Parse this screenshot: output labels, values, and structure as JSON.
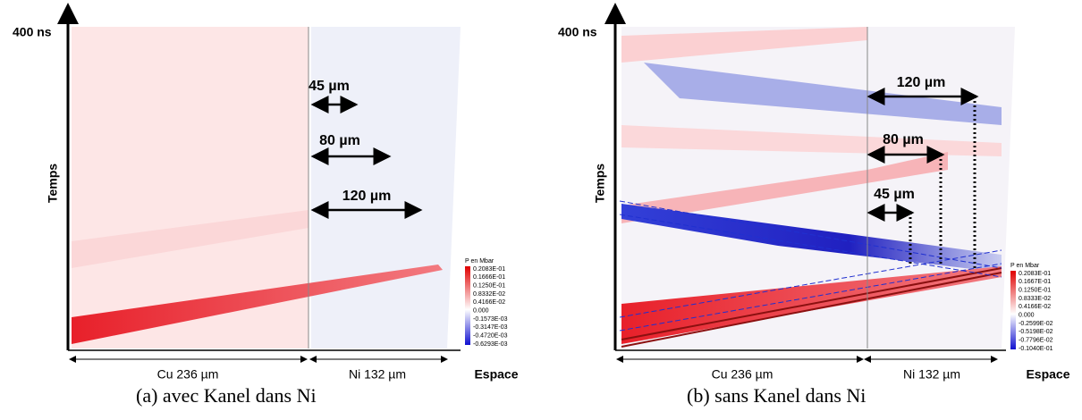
{
  "panels": [
    {
      "time_label": "400 ns",
      "y_label": "Temps",
      "x_label": "Espace",
      "cu_label": "Cu 236 µm",
      "ni_label": "Ni 132 µm",
      "annotations": [
        "45 µm",
        "80 µm",
        "120 µm"
      ],
      "colorbar": {
        "title": "P en Mbar",
        "labels": [
          "0.2083E-01",
          "0.1666E-01",
          "0.1250E-01",
          "0.8332E-02",
          "0.4166E-02",
          "0.000",
          "-0.1573E-03",
          "-0.3147E-03",
          "-0.4720E-03",
          "-0.6293E-03"
        ]
      },
      "caption": "(a) avec Kanel dans Ni"
    },
    {
      "time_label": "400 ns",
      "y_label": "Temps",
      "x_label": "Espace",
      "cu_label": "Cu 236 µm",
      "ni_label": "Ni 132 µm",
      "annotations": [
        "45 µm",
        "80 µm",
        "120 µm"
      ],
      "colorbar": {
        "title": "P en Mbar",
        "labels": [
          "0.2083E-01",
          "0.1667E-01",
          "0.1250E-01",
          "0.8333E-02",
          "0.4166E-02",
          "0.000",
          "-0.2599E-02",
          "-0.5198E-02",
          "-0.7796E-02",
          "-0.1040E-01"
        ]
      },
      "caption": "(b) sans Kanel dans Ni"
    }
  ]
}
